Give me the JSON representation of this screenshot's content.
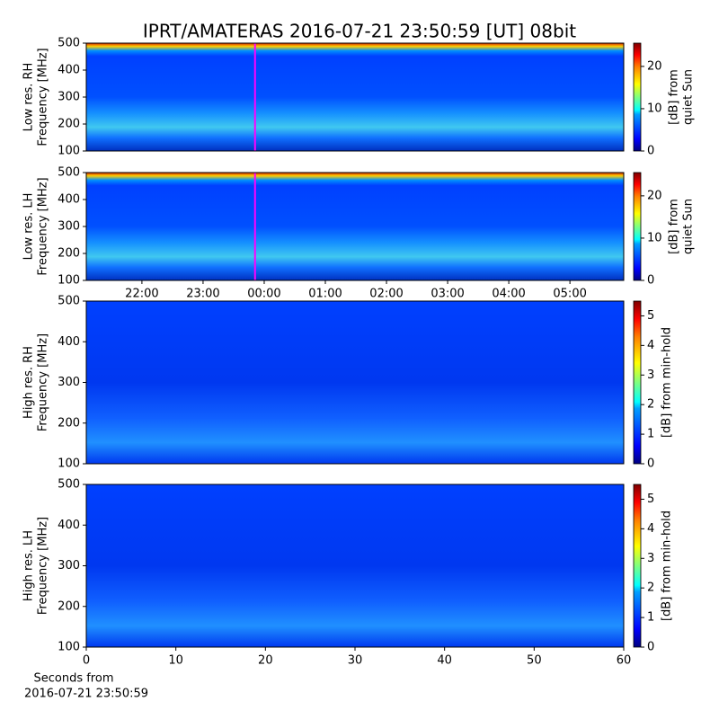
{
  "figure": {
    "title": "IPRT/AMATERAS 2016-07-21 23:50:59 [UT]   08bit",
    "xlabel": [
      "Seconds from",
      "2016-07-21 23:50:59"
    ]
  },
  "chart_data": [
    {
      "type": "heatmap",
      "ylabel": [
        "Low res. RH",
        "Frequency [MHz]"
      ],
      "colormap": "jet",
      "xlim": [
        21.09,
        29.88
      ],
      "ylim": [
        100,
        500
      ],
      "yticks": [
        100,
        200,
        300,
        400,
        500
      ],
      "marker_x": 23.85,
      "marker_color": "#ff00ff",
      "clim": [
        0,
        25.5
      ],
      "cticks": [
        0,
        10,
        20
      ],
      "clabel": [
        "[dB] from",
        "quiet Sun"
      ]
    },
    {
      "type": "heatmap",
      "ylabel": [
        "Low res. LH",
        "Frequency [MHz]"
      ],
      "colormap": "jet",
      "xlim": [
        21.09,
        29.88
      ],
      "ylim": [
        100,
        500
      ],
      "yticks": [
        100,
        200,
        300,
        400,
        500
      ],
      "xticks": [
        {
          "value": 22,
          "label": "22:00"
        },
        {
          "value": 23,
          "label": "23:00"
        },
        {
          "value": 24,
          "label": "00:00"
        },
        {
          "value": 25,
          "label": "01:00"
        },
        {
          "value": 26,
          "label": "02:00"
        },
        {
          "value": 27,
          "label": "03:00"
        },
        {
          "value": 28,
          "label": "04:00"
        },
        {
          "value": 29,
          "label": "05:00"
        }
      ],
      "marker_x": 23.85,
      "marker_color": "#ff00ff",
      "clim": [
        0,
        25.5
      ],
      "cticks": [
        0,
        10,
        20
      ],
      "clabel": [
        "[dB] from",
        "quiet Sun"
      ]
    },
    {
      "type": "heatmap",
      "ylabel": [
        "High res. RH",
        "Frequency [MHz]"
      ],
      "colormap": "jet",
      "xlim": [
        0,
        60
      ],
      "ylim": [
        100,
        500
      ],
      "yticks": [
        100,
        200,
        300,
        400,
        500
      ],
      "clim": [
        0,
        5.5
      ],
      "cticks": [
        0,
        1,
        2,
        3,
        4,
        5
      ],
      "clabel": [
        "[dB] from min-hold"
      ]
    },
    {
      "type": "heatmap",
      "ylabel": [
        "High res. LH",
        "Frequency [MHz]"
      ],
      "colormap": "jet",
      "xlim": [
        0,
        60
      ],
      "ylim": [
        100,
        500
      ],
      "yticks": [
        100,
        200,
        300,
        400,
        500
      ],
      "xticks": [
        0,
        10,
        20,
        30,
        40,
        50,
        60
      ],
      "clim": [
        0,
        5.5
      ],
      "cticks": [
        0,
        1,
        2,
        3,
        4,
        5
      ],
      "clabel": [
        "[dB] from min-hold"
      ]
    }
  ]
}
